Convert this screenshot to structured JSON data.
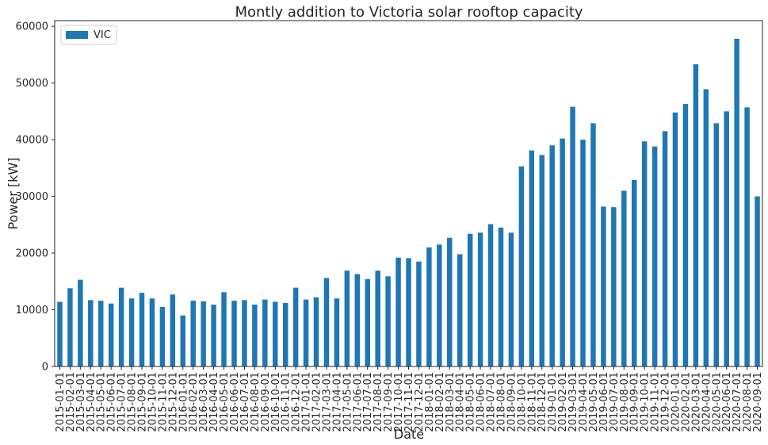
{
  "chart_data": {
    "type": "bar",
    "title": "Montly addition to Victoria solar rooftop capacity",
    "xlabel": "Date",
    "ylabel": "Power [kW]",
    "ylim": [
      0,
      61000
    ],
    "yticks": [
      0,
      10000,
      20000,
      30000,
      40000,
      50000,
      60000
    ],
    "grid": false,
    "legend": {
      "position": "top-left"
    },
    "colors": {
      "bar": "#1f77b4",
      "axis": "#262626"
    },
    "categories": [
      "2015-01-01",
      "2015-02-01",
      "2015-03-01",
      "2015-04-01",
      "2015-05-01",
      "2015-06-01",
      "2015-07-01",
      "2015-08-01",
      "2015-09-01",
      "2015-10-01",
      "2015-11-01",
      "2015-12-01",
      "2016-01-01",
      "2016-02-01",
      "2016-03-01",
      "2016-04-01",
      "2016-05-01",
      "2016-06-01",
      "2016-07-01",
      "2016-08-01",
      "2016-09-01",
      "2016-10-01",
      "2016-11-01",
      "2016-12-01",
      "2017-01-01",
      "2017-02-01",
      "2017-03-01",
      "2017-04-01",
      "2017-05-01",
      "2017-06-01",
      "2017-07-01",
      "2017-08-01",
      "2017-09-01",
      "2017-10-01",
      "2017-11-01",
      "2017-12-01",
      "2018-01-01",
      "2018-02-01",
      "2018-03-01",
      "2018-04-01",
      "2018-05-01",
      "2018-06-01",
      "2018-07-01",
      "2018-08-01",
      "2018-09-01",
      "2018-10-01",
      "2018-11-01",
      "2018-12-01",
      "2019-01-01",
      "2019-02-01",
      "2019-03-01",
      "2019-04-01",
      "2019-05-01",
      "2019-06-01",
      "2019-07-01",
      "2019-08-01",
      "2019-09-01",
      "2019-10-01",
      "2019-11-01",
      "2019-12-01",
      "2020-01-01",
      "2020-02-01",
      "2020-03-01",
      "2020-04-01",
      "2020-05-01",
      "2020-06-01",
      "2020-07-01",
      "2020-08-01",
      "2020-09-01"
    ],
    "series": [
      {
        "name": "VIC",
        "values": [
          11400,
          13800,
          15300,
          11700,
          11600,
          11100,
          13900,
          12000,
          13000,
          12000,
          10500,
          12700,
          9000,
          11600,
          11500,
          10900,
          13100,
          11600,
          11700,
          10900,
          11800,
          11400,
          11200,
          13900,
          11800,
          12200,
          15600,
          12000,
          16900,
          16300,
          15400,
          16900,
          15900,
          19200,
          19100,
          18500,
          21000,
          21500,
          22700,
          19800,
          23400,
          23600,
          25100,
          24500,
          23600,
          35300,
          38100,
          37300,
          39000,
          40200,
          45800,
          40000,
          42900,
          28200,
          28100,
          31000,
          32900,
          39700,
          38800,
          41500,
          44800,
          46300,
          53300,
          48900,
          42900,
          45000,
          57800,
          45700,
          30000
        ]
      }
    ]
  }
}
